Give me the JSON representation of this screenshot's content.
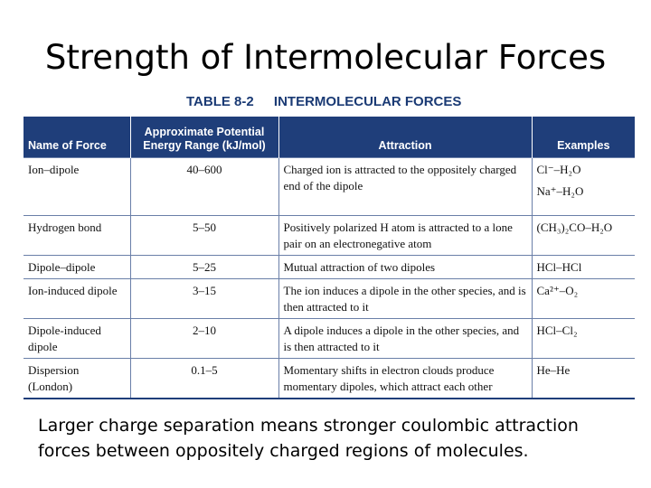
{
  "slide": {
    "title": "Strength of Intermolecular Forces",
    "body_text": "Larger charge separation means stronger coulombic attraction forces between oppositely charged regions of molecules."
  },
  "table": {
    "number": "TABLE 8-2",
    "title": "INTERMOLECULAR FORCES",
    "columns": [
      "Name of Force",
      "Approximate Potential Energy Range (kJ/mol)",
      "Attraction",
      "Examples"
    ],
    "rows": [
      {
        "name": "Ion–dipole",
        "range": "40–600",
        "attraction": "Charged ion is attracted to the oppositely charged end of the dipole",
        "examples": [
          "Cl⁻–H₂O",
          "Na⁺–H₂O"
        ]
      },
      {
        "name": "Hydrogen bond",
        "range": "5–50",
        "attraction": "Positively polarized H atom is attracted to a lone pair on an electronegative atom",
        "examples": [
          "(CH₃)₂CO–H₂O"
        ]
      },
      {
        "name": "Dipole–dipole",
        "range": "5–25",
        "attraction": "Mutual attraction of two dipoles",
        "examples": [
          "HCl–HCl"
        ]
      },
      {
        "name": "Ion-induced dipole",
        "range": "3–15",
        "attraction": "The ion induces a dipole in the other species, and is then attracted to it",
        "examples": [
          "Ca²⁺–O₂"
        ]
      },
      {
        "name": "Dipole-induced dipole",
        "range": "2–10",
        "attraction": "A dipole induces a dipole in the other species, and is then attracted to it",
        "examples": [
          "HCl–Cl₂"
        ]
      },
      {
        "name": "Dispersion (London)",
        "range": "0.1–5",
        "attraction": "Momentary shifts in electron clouds produce momentary dipoles, which attract each other",
        "examples": [
          "He–He"
        ]
      }
    ]
  },
  "colors": {
    "header_bg": "#1f3e7a",
    "caption": "#1a3a74"
  }
}
